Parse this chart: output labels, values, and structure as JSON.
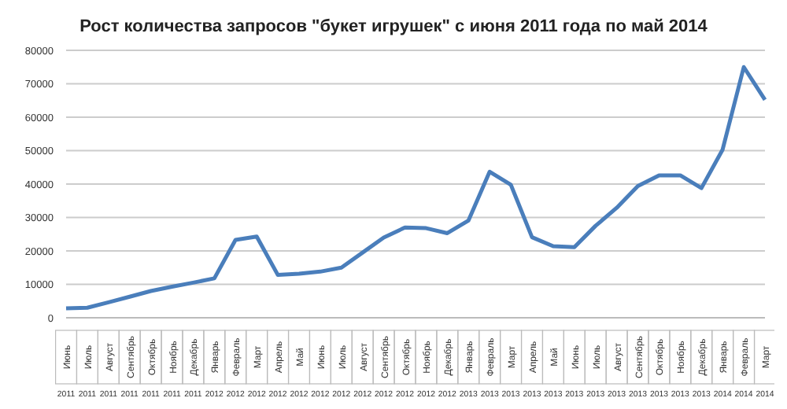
{
  "chart_data": {
    "type": "line",
    "title": "Рост количества запросов \"букет игрушек\" с июня 2011 года по май 2014",
    "categories": [
      "Июнь 2011",
      "Июль 2011",
      "Август 2011",
      "Сентябрь 2011",
      "Октябрь 2011",
      "Ноябрь 2011",
      "Декабрь 2011",
      "Январь 2012",
      "Февраль 2012",
      "Март 2012",
      "Апрель 2012",
      "Май 2012",
      "Июнь 2012",
      "Июль 2012",
      "Август 2012",
      "Сентябрь 2012",
      "Октябрь 2012",
      "Ноябрь 2012",
      "Декабрь 2012",
      "Январь 2013",
      "Февраль 2013",
      "Март 2013",
      "Апрель 2013",
      "Май 2013",
      "Июнь 2013",
      "Июль 2013",
      "Август 2013",
      "Сентябрь 2013",
      "Октябрь 2013",
      "Ноябрь 2013",
      "Декабрь 2013",
      "Январь 2014",
      "Февраль 2014",
      "Март 2014"
    ],
    "series": [
      {
        "color": "#4a7ebb",
        "values": [
          2800,
          3000,
          4600,
          6300,
          8000,
          9300,
          10500,
          11800,
          23300,
          24300,
          12800,
          13200,
          13800,
          15000,
          19500,
          24000,
          27000,
          26800,
          25300,
          29100,
          43700,
          39800,
          24100,
          21400,
          21100,
          27500,
          32900,
          39400,
          42600,
          42600,
          38800,
          50300,
          75000,
          65200
        ]
      }
    ],
    "ylim": [
      0,
      80000
    ],
    "yticks": [
      0,
      10000,
      20000,
      30000,
      40000,
      50000,
      60000,
      70000,
      80000
    ],
    "grid": "y",
    "legend": false,
    "marker": "none",
    "line_style": "solid"
  }
}
